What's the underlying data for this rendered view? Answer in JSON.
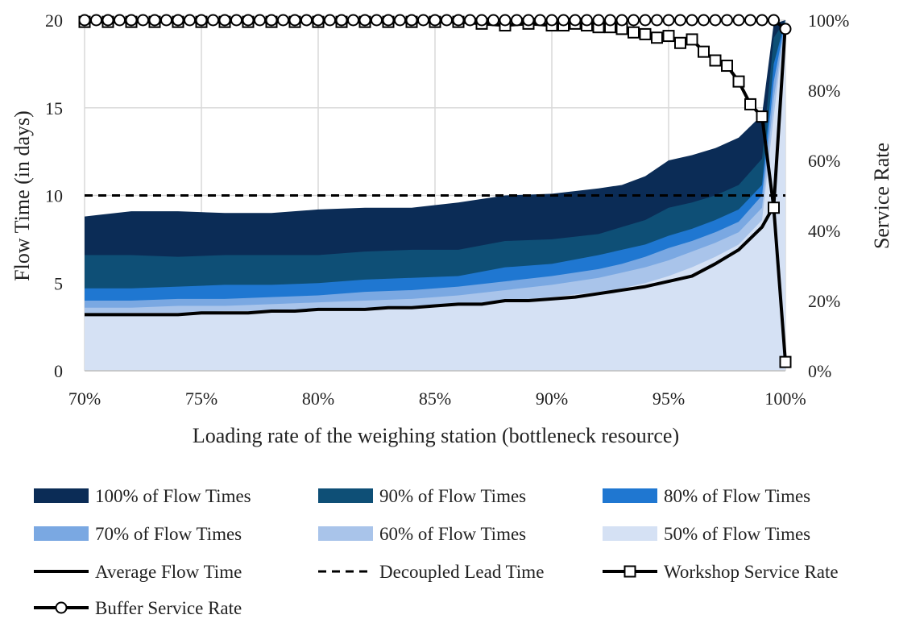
{
  "chart_data": {
    "type": "area",
    "xlabel": "Loading rate of the weighing station (bottleneck resource)",
    "ylabel": "Flow Time (in days)",
    "y2label": "Service Rate",
    "xlim": [
      70,
      100
    ],
    "ylim": [
      0,
      20
    ],
    "y2lim": [
      0,
      100
    ],
    "x_ticks": [
      "70%",
      "75%",
      "80%",
      "85%",
      "90%",
      "95%",
      "100%"
    ],
    "y_ticks": [
      "0",
      "5",
      "10",
      "15",
      "20"
    ],
    "y2_ticks": [
      "0%",
      "20%",
      "40%",
      "60%",
      "80%",
      "100%"
    ],
    "grid": true,
    "legend_position": "bottom",
    "series": [
      {
        "name": "100% of Flow Times",
        "kind": "area",
        "axis": "left",
        "color": "#0b2c56",
        "x": [
          70,
          72,
          74,
          76,
          78,
          80,
          82,
          84,
          86,
          88,
          90,
          92,
          93,
          94,
          95,
          96,
          97,
          98,
          99,
          99.5,
          100
        ],
        "y": [
          8.8,
          9.1,
          9.1,
          9.0,
          9.0,
          9.2,
          9.3,
          9.3,
          9.6,
          10.0,
          10.1,
          10.4,
          10.6,
          11.1,
          12.0,
          12.3,
          12.7,
          13.3,
          14.6,
          19.8,
          20.0
        ]
      },
      {
        "name": "90% of Flow Times",
        "kind": "area",
        "axis": "left",
        "color": "#0e4f76",
        "x": [
          70,
          72,
          74,
          76,
          78,
          80,
          82,
          84,
          86,
          88,
          90,
          92,
          93,
          94,
          95,
          96,
          97,
          98,
          99,
          99.5,
          100
        ],
        "y": [
          6.6,
          6.6,
          6.5,
          6.6,
          6.6,
          6.6,
          6.8,
          6.9,
          6.9,
          7.4,
          7.5,
          7.8,
          8.2,
          8.6,
          9.3,
          9.6,
          10.0,
          10.6,
          12.1,
          19.0,
          20.0
        ]
      },
      {
        "name": "80% of Flow Times",
        "kind": "area",
        "axis": "left",
        "color": "#1f77d1",
        "x": [
          70,
          72,
          74,
          76,
          78,
          80,
          82,
          84,
          86,
          88,
          90,
          92,
          93,
          94,
          95,
          96,
          97,
          98,
          99,
          99.5,
          100
        ],
        "y": [
          4.7,
          4.7,
          4.8,
          4.9,
          4.9,
          5.0,
          5.2,
          5.3,
          5.4,
          5.9,
          6.1,
          6.6,
          6.9,
          7.2,
          7.7,
          8.1,
          8.6,
          9.2,
          10.6,
          17.5,
          20.0
        ]
      },
      {
        "name": "70% of Flow Times",
        "kind": "area",
        "axis": "left",
        "color": "#7aa8e2",
        "x": [
          70,
          72,
          74,
          76,
          78,
          80,
          82,
          84,
          86,
          88,
          90,
          92,
          93,
          94,
          95,
          96,
          97,
          98,
          99,
          99.5,
          100
        ],
        "y": [
          4.0,
          4.0,
          4.1,
          4.1,
          4.2,
          4.3,
          4.5,
          4.6,
          4.8,
          5.1,
          5.4,
          5.8,
          6.1,
          6.5,
          7.0,
          7.4,
          7.9,
          8.5,
          10.0,
          16.5,
          20.0
        ]
      },
      {
        "name": "60% of Flow Times",
        "kind": "area",
        "axis": "left",
        "color": "#a9c4ea",
        "x": [
          70,
          72,
          74,
          76,
          78,
          80,
          82,
          84,
          86,
          88,
          90,
          92,
          93,
          94,
          95,
          96,
          97,
          98,
          99,
          99.5,
          100
        ],
        "y": [
          3.6,
          3.6,
          3.7,
          3.7,
          3.8,
          3.9,
          4.0,
          4.1,
          4.3,
          4.6,
          4.9,
          5.3,
          5.6,
          5.9,
          6.3,
          6.8,
          7.3,
          7.9,
          9.3,
          15.5,
          20.0
        ]
      },
      {
        "name": "50% of Flow Times",
        "kind": "area",
        "axis": "left",
        "color": "#d5e1f4",
        "x": [
          70,
          72,
          74,
          76,
          78,
          80,
          82,
          84,
          86,
          88,
          90,
          92,
          93,
          94,
          95,
          96,
          97,
          98,
          99,
          99.5,
          100
        ],
        "y": [
          3.2,
          3.3,
          3.3,
          3.4,
          3.4,
          3.5,
          3.6,
          3.7,
          3.8,
          4.0,
          4.2,
          4.5,
          4.7,
          5.0,
          5.4,
          5.9,
          6.5,
          7.2,
          8.6,
          14.5,
          20.0
        ]
      },
      {
        "name": "Average Flow Time",
        "kind": "line",
        "axis": "left",
        "color": "#000000",
        "x": [
          70,
          71,
          72,
          73,
          74,
          75,
          76,
          77,
          78,
          79,
          80,
          81,
          82,
          83,
          84,
          85,
          86,
          87,
          88,
          89,
          90,
          91,
          92,
          93,
          94,
          95,
          96,
          97,
          98,
          99,
          99.5,
          100
        ],
        "y": [
          3.2,
          3.2,
          3.2,
          3.2,
          3.2,
          3.3,
          3.3,
          3.3,
          3.4,
          3.4,
          3.5,
          3.5,
          3.5,
          3.6,
          3.6,
          3.7,
          3.8,
          3.8,
          4.0,
          4.0,
          4.1,
          4.2,
          4.4,
          4.6,
          4.8,
          5.1,
          5.4,
          6.1,
          6.9,
          8.2,
          9.4,
          19.8
        ]
      },
      {
        "name": "Decoupled Lead Time",
        "kind": "dashed",
        "axis": "left",
        "color": "#000000",
        "x": [
          70,
          100
        ],
        "y": [
          10,
          10
        ]
      },
      {
        "name": "Workshop Service Rate",
        "kind": "line-square",
        "axis": "right",
        "color": "#000000",
        "x": [
          70,
          71,
          72,
          73,
          74,
          75,
          76,
          77,
          78,
          79,
          80,
          81,
          82,
          83,
          84,
          85,
          86,
          87,
          88,
          89,
          90,
          90.5,
          91,
          91.5,
          92,
          92.5,
          93,
          93.5,
          94,
          94.5,
          95,
          95.5,
          96,
          96.5,
          97,
          97.5,
          98,
          98.5,
          99,
          99.5,
          100
        ],
        "y": [
          99.5,
          99.5,
          99.5,
          99.5,
          99.5,
          99.5,
          99.5,
          99.5,
          99.5,
          99.5,
          99.5,
          99.5,
          99.5,
          99.5,
          99.5,
          99.5,
          99.5,
          99.0,
          98.5,
          99.0,
          98.5,
          98.5,
          99.0,
          98.5,
          98.0,
          98.0,
          97.5,
          96.5,
          96.0,
          95.0,
          95.5,
          93.5,
          94.5,
          91.0,
          88.5,
          87.0,
          82.5,
          76.0,
          72.5,
          46.5,
          2.5
        ]
      },
      {
        "name": "Buffer Service Rate",
        "kind": "line-circle",
        "axis": "right",
        "color": "#000000",
        "x": [
          70,
          70.5,
          71,
          71.5,
          72,
          72.5,
          73,
          73.5,
          74,
          74.5,
          75,
          75.5,
          76,
          76.5,
          77,
          77.5,
          78,
          78.5,
          79,
          79.5,
          80,
          80.5,
          81,
          81.5,
          82,
          82.5,
          83,
          83.5,
          84,
          84.5,
          85,
          85.5,
          86,
          86.5,
          87,
          87.5,
          88,
          88.5,
          89,
          89.5,
          90,
          90.5,
          91,
          91.5,
          92,
          92.5,
          93,
          93.5,
          94,
          94.5,
          95,
          95.5,
          96,
          96.5,
          97,
          97.5,
          98,
          98.5,
          99,
          99.5,
          100
        ],
        "y": [
          100,
          100,
          100,
          100,
          100,
          100,
          100,
          100,
          100,
          100,
          100,
          100,
          100,
          100,
          100,
          100,
          100,
          100,
          100,
          100,
          100,
          100,
          100,
          100,
          100,
          100,
          100,
          100,
          100,
          100,
          100,
          100,
          100,
          100,
          100,
          100,
          100,
          100,
          100,
          100,
          100,
          100,
          100,
          100,
          100,
          100,
          100,
          100,
          100,
          100,
          100,
          100,
          100,
          100,
          100,
          100,
          100,
          100,
          100,
          100,
          97.5
        ]
      }
    ]
  }
}
